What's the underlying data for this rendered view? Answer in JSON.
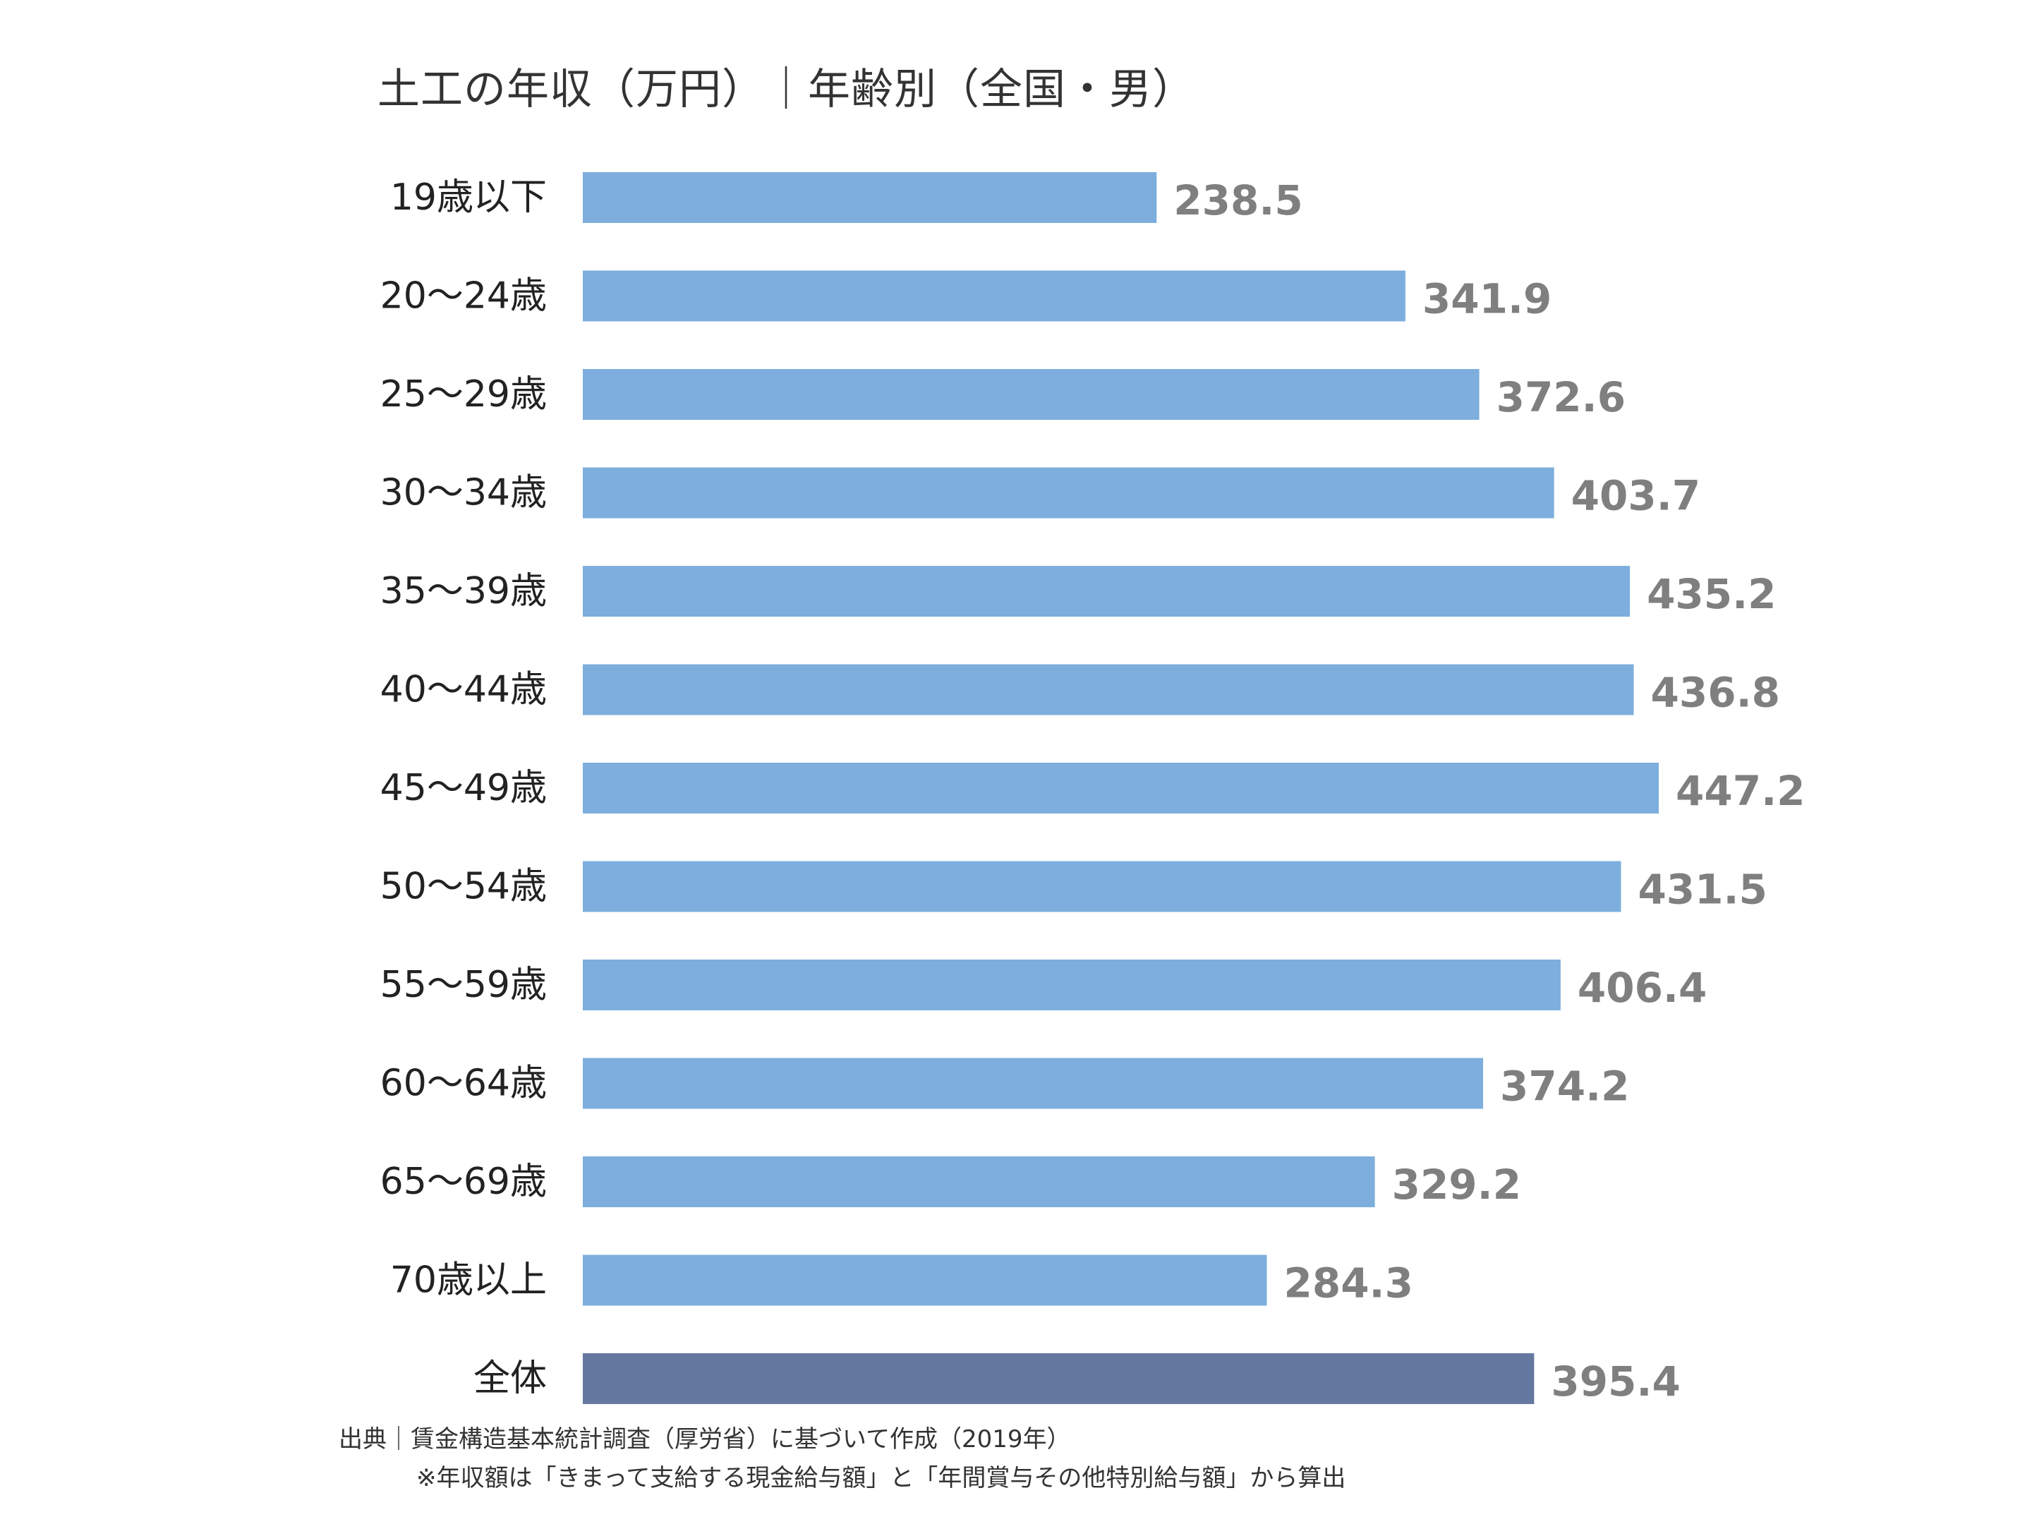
{
  "title": "土工の年収（万円）｜年齢別（全国・男）",
  "source": "出典｜賃金構造基本統計調査（厚労省）に基づいて作成（2019年）",
  "note": "※年収額は「きまって支給する現金給与額」と「年間賞与その他特別給与額」から算出",
  "colors": {
    "bar": "#7daedd",
    "total_bar": "#65789f",
    "value_label": "#7f7f7f",
    "category_label": "#222222"
  },
  "chart_data": {
    "type": "bar",
    "orientation": "horizontal",
    "title": "土工の年収（万円）｜年齢別（全国・男）",
    "xlabel": "",
    "ylabel": "",
    "xlim": [
      0,
      447.2
    ],
    "grid": false,
    "legend": "none",
    "categories": [
      "19歳以下",
      "20～24歳",
      "25～29歳",
      "30～34歳",
      "35～39歳",
      "40～44歳",
      "45～49歳",
      "50～54歳",
      "55～59歳",
      "60～64歳",
      "65～69歳",
      "70歳以上",
      "全体"
    ],
    "values": [
      238.5,
      341.9,
      372.6,
      403.7,
      435.2,
      436.8,
      447.2,
      431.5,
      406.4,
      374.2,
      329.2,
      284.3,
      395.4
    ],
    "value_labels": [
      "238.5",
      "341.9",
      "372.6",
      "403.7",
      "435.2",
      "436.8",
      "447.2",
      "431.5",
      "406.4",
      "374.2",
      "329.2",
      "284.3",
      "395.4"
    ],
    "highlight": "全体"
  }
}
